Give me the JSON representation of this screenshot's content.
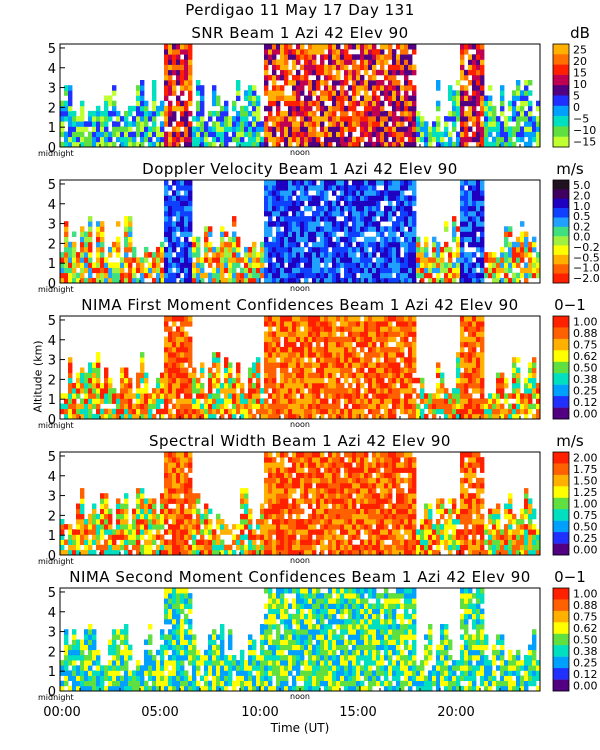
{
  "main_title": "Perdigao  11 May 17 Day 131",
  "axis": {
    "ylabel": "Altitude (km)",
    "xlabel": "Time (UT)",
    "x_ticks": [
      "00:00",
      "05:00",
      "10:00",
      "15:00",
      "20:00"
    ],
    "midnight_label": "midnight",
    "noon_label": "noon",
    "y_ticks": [
      "0",
      "1",
      "2",
      "3",
      "4",
      "5"
    ]
  },
  "chart_data": [
    {
      "type": "heatmap",
      "title": "SNR Beam 1 Azi  42 Elev 90",
      "unit": "dB",
      "ylim": [
        0,
        5
      ],
      "xlim": [
        "00:00",
        "24:00"
      ],
      "scale_labels": [
        "25",
        "20",
        "15",
        "10",
        "5",
        "0",
        "−5",
        "−10",
        "−15"
      ],
      "scale_colors": [
        "#ffb000",
        "#ff7000",
        "#ff2000",
        "#c00050",
        "#500080",
        "#2030ff",
        "#00a0ff",
        "#00e0c0",
        "#60e040",
        "#c0ff30"
      ],
      "cover": [
        0.1,
        0.85
      ]
    },
    {
      "type": "heatmap",
      "title": "Doppler Velocity Beam 1 Azi  42 Elev 90",
      "unit": "m/s",
      "ylim": [
        0,
        5
      ],
      "xlim": [
        "00:00",
        "24:00"
      ],
      "scale_labels": [
        "5.0",
        "2.0",
        "1.0",
        "0.5",
        "0.2",
        "0.0",
        "−0.2",
        "−0.5",
        "−1.0",
        "−2.0"
      ],
      "scale_colors": [
        "#201020",
        "#400060",
        "#2000c0",
        "#1040ff",
        "#20a0ff",
        "#40e080",
        "#a0f040",
        "#ffff00",
        "#ffb000",
        "#ff6000",
        "#ff2000"
      ],
      "cover": [
        0.35,
        0.9
      ]
    },
    {
      "type": "heatmap",
      "title": "NIMA First Moment Confidences Beam 1 Azi  42 Elev 90",
      "unit": "0−1",
      "ylim": [
        0,
        5
      ],
      "xlim": [
        "00:00",
        "24:00"
      ],
      "scale_labels": [
        "1.00",
        "0.88",
        "0.75",
        "0.62",
        "0.50",
        "0.38",
        "0.25",
        "0.12",
        "0.00"
      ],
      "scale_colors": [
        "#ff2000",
        "#ff6000",
        "#ffb000",
        "#ffff00",
        "#60e040",
        "#00e0c0",
        "#00a0ff",
        "#2030ff",
        "#500080"
      ],
      "cover": [
        0.4,
        0.9
      ]
    },
    {
      "type": "heatmap",
      "title": "Spectral Width Beam 1 Azi  42 Elev 90",
      "unit": "m/s",
      "ylim": [
        0,
        5
      ],
      "xlim": [
        "00:00",
        "24:00"
      ],
      "scale_labels": [
        "2.00",
        "1.75",
        "1.50",
        "1.25",
        "1.00",
        "0.75",
        "0.50",
        "0.25",
        "0.00"
      ],
      "scale_colors": [
        "#ff2000",
        "#ff6000",
        "#ffb000",
        "#ffff00",
        "#60e040",
        "#00e0c0",
        "#00a0ff",
        "#2030ff",
        "#500080"
      ],
      "cover": [
        0.4,
        0.9
      ]
    },
    {
      "type": "heatmap",
      "title": "NIMA Second Moment Confidences Beam 1 Azi  42 Elev 90",
      "unit": "0−1",
      "ylim": [
        0,
        5
      ],
      "xlim": [
        "00:00",
        "24:00"
      ],
      "scale_labels": [
        "1.00",
        "0.88",
        "0.75",
        "0.62",
        "0.50",
        "0.38",
        "0.25",
        "0.12",
        "0.00"
      ],
      "scale_colors": [
        "#ff2000",
        "#ff6000",
        "#ffb000",
        "#ffff00",
        "#60e040",
        "#00e0c0",
        "#00a0ff",
        "#2030ff",
        "#500080"
      ],
      "cover": [
        0.3,
        0.9
      ]
    }
  ]
}
